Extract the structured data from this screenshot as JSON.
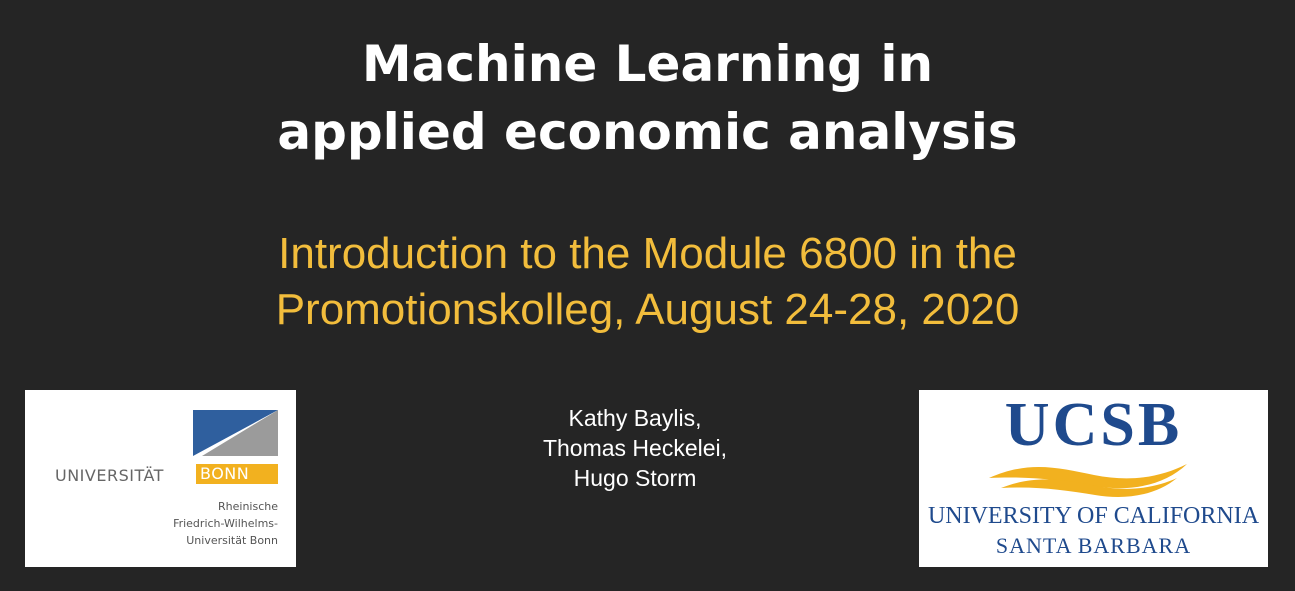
{
  "slide": {
    "title_lines": [
      "Machine Learning in",
      "applied economic analysis"
    ],
    "subtitle_lines": [
      "Introduction to the Module 6800 in the",
      "Promotionskolleg, August 24-28, 2020"
    ],
    "authors": [
      "Kathy Baylis,",
      "Thomas Heckelei,",
      "Hugo Storm"
    ],
    "colors": {
      "background": "#252525",
      "title": "#ffffff",
      "subtitle": "#f2bd3c",
      "bonn_blue": "#2f5f9e",
      "bonn_gray": "#9b9b9b",
      "bonn_gold": "#f2b11f",
      "ucsb_blue": "#1f4a8d",
      "ucsb_gold": "#f2b11f"
    }
  },
  "logos": {
    "bonn": {
      "word1": "UNIVERSITÄT",
      "word2": "BONN",
      "sub_lines": [
        "Rheinische",
        "Friedrich-Wilhelms-",
        "Universität Bonn"
      ]
    },
    "ucsb": {
      "big": "UCSB",
      "line1": "UNIVERSITY OF CALIFORNIA",
      "line2": "SANTA BARBARA"
    }
  }
}
